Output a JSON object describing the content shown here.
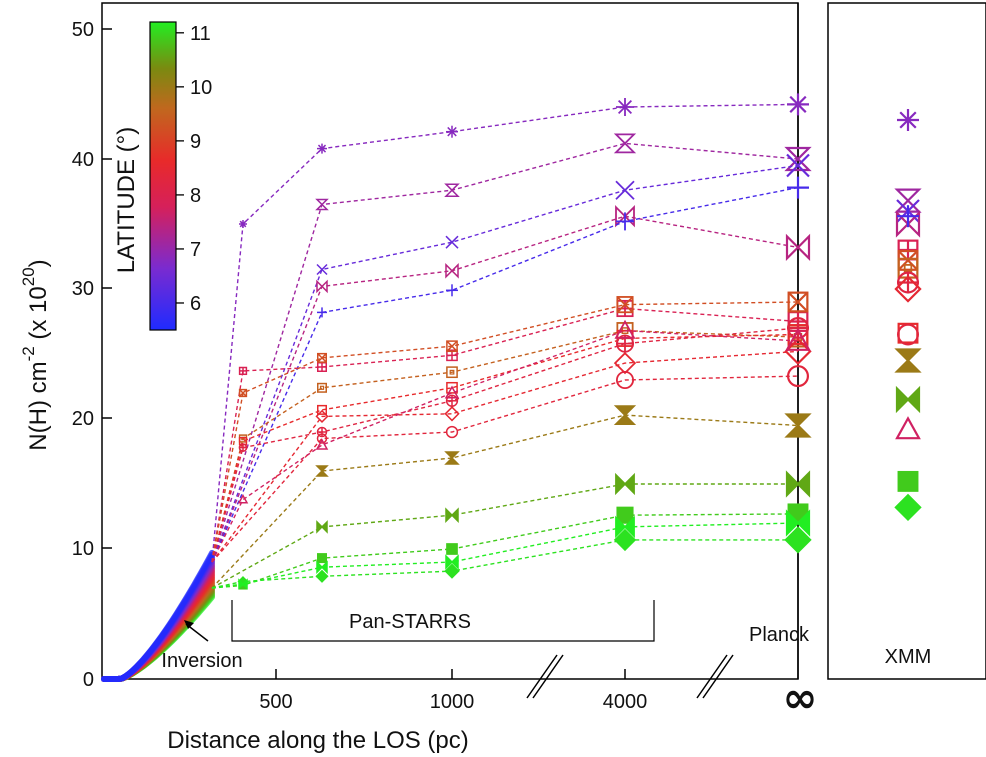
{
  "chart_data": {
    "type": "scatter",
    "xlabel": "Distance along the LOS (pc)",
    "ylabel": "N(H) cm",
    "ylabel_sup1": "-2",
    "ylabel_mid": " (x 10",
    "ylabel_sup2": "20",
    "ylabel_end": ")",
    "ylim": [
      0,
      52
    ],
    "y_ticks": [
      0,
      10,
      20,
      30,
      40,
      50
    ],
    "x_ticks": [
      "500",
      "1000",
      "4000",
      "∞"
    ],
    "x_positions": [
      "400",
      "630",
      "1000",
      "4000",
      "∞"
    ],
    "colorbar": {
      "label": "LATITUDE (°)",
      "min": 5.5,
      "max": 11.2,
      "ticks": [
        6,
        7,
        8,
        9,
        10,
        11
      ]
    },
    "annotations": {
      "inversion": "Inversion",
      "panstarrs": "Pan-STARRS",
      "planck": "Planck",
      "xmm": "XMM"
    },
    "series": [
      {
        "latitude": 6.8,
        "marker": "asterisk",
        "values": [
          35,
          40.8,
          42.1,
          44,
          44.2
        ],
        "xmm": 43
      },
      {
        "latitude": 7.1,
        "marker": "hourglass",
        "values": [
          null,
          36.5,
          37.6,
          41.2,
          40
        ],
        "xmm": 36.8
      },
      {
        "latitude": 6.4,
        "marker": "x",
        "values": [
          null,
          31.5,
          33.6,
          37.6,
          39.5
        ],
        "xmm": 36
      },
      {
        "latitude": 7.4,
        "marker": "bowtie",
        "values": [
          null,
          30.2,
          31.4,
          35.6,
          33.2
        ],
        "xmm": 35
      },
      {
        "latitude": 6.0,
        "marker": "plus",
        "values": [
          null,
          28.2,
          29.9,
          35.2,
          37.8
        ],
        "xmm": 35.6
      },
      {
        "latitude": 7.9,
        "marker": "square-cross",
        "values": [
          23.7,
          24,
          24.9,
          28.5,
          27.5
        ],
        "xmm": 33
      },
      {
        "latitude": 9.2,
        "marker": "square-x",
        "values": [
          22,
          24.7,
          25.6,
          28.8,
          29
        ],
        "xmm": 32.2
      },
      {
        "latitude": 9.5,
        "marker": "square-dot",
        "values": [
          18.5,
          22.4,
          23.6,
          26.8,
          26.3
        ],
        "xmm": 31.6
      },
      {
        "latitude": 8.6,
        "marker": "square",
        "values": [
          18.3,
          20.7,
          22.4,
          26.2,
          26.5
        ],
        "xmm": 26.6
      },
      {
        "latitude": 8.2,
        "marker": "circle-plus",
        "values": [
          17.8,
          19,
          21.4,
          25.8,
          27
        ],
        "xmm": 30.5
      },
      {
        "latitude": 8.5,
        "marker": "diamond",
        "values": [
          null,
          20.2,
          20.4,
          24.3,
          25.2
        ],
        "xmm": 30
      },
      {
        "latitude": 8.3,
        "marker": "circle",
        "values": [
          null,
          18.5,
          19,
          23,
          23.3
        ],
        "xmm": 26.5
      },
      {
        "latitude": 7.7,
        "marker": "triangle",
        "values": [
          13.8,
          18,
          22,
          26.8,
          26
        ],
        "xmm": 19.2
      },
      {
        "latitude": 10.0,
        "marker": "hourglass-filled",
        "values": [
          null,
          16,
          17,
          20.3,
          19.5
        ],
        "xmm": 24.5
      },
      {
        "latitude": 10.6,
        "marker": "bowtie-filled",
        "values": [
          null,
          11.7,
          12.6,
          15,
          15
        ],
        "xmm": 21.5
      },
      {
        "latitude": 10.9,
        "marker": "square-filled",
        "values": [
          7.2,
          9.3,
          10,
          12.6,
          12.7
        ],
        "xmm": 15.2
      },
      {
        "latitude": 11.1,
        "marker": "diamond-filled",
        "values": [
          7.5,
          7.9,
          8.3,
          10.7,
          10.7
        ],
        "xmm": 13.2
      },
      {
        "latitude": 11.2,
        "marker": "bowtie-filled",
        "values": [
          7.3,
          8.6,
          9,
          11.7,
          12
        ],
        "xmm": null
      }
    ]
  }
}
